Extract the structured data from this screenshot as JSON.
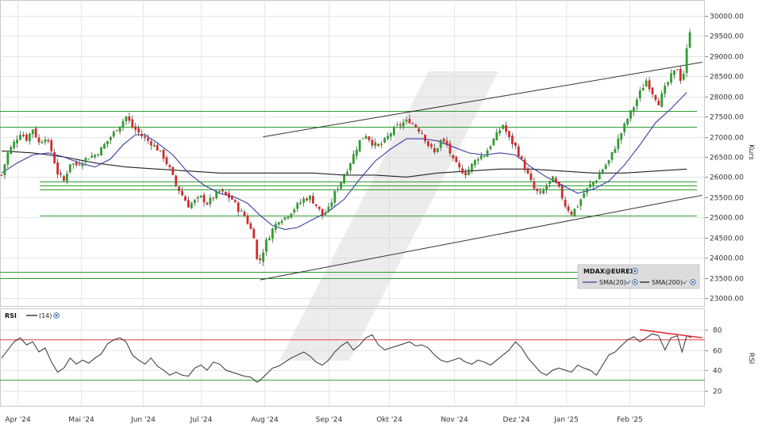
{
  "chart_data": {
    "type": "candlestick",
    "title": "MDAX@EUREX",
    "series": [
      {
        "name": "SMA(20)",
        "color": "#3a3aa8"
      },
      {
        "name": "SMA(200)",
        "color": "#222222"
      }
    ],
    "ylabel": "Kurs",
    "ylim": [
      22800,
      30200
    ],
    "yticks": [
      "30000.00",
      "29500.00",
      "29000.00",
      "28500.00",
      "28000.00",
      "27500.00",
      "27000.00",
      "26500.00",
      "26000.00",
      "25500.00",
      "25000.00",
      "24500.00",
      "24000.00",
      "23500.00",
      "23000.00"
    ],
    "months": [
      "Apr '24",
      "Mai '24",
      "Jun '24",
      "Jul '24",
      "Aug '24",
      "Sep '24",
      "Okt '24",
      "Nov '24",
      "Dez '24",
      "Jan '25",
      "Feb '25"
    ],
    "horizontal_levels": [
      27650,
      27250,
      25900,
      25800,
      25700,
      25050,
      23650,
      23500
    ],
    "close_path": [
      [
        0,
        26050
      ],
      [
        4,
        26600
      ],
      [
        8,
        26850
      ],
      [
        12,
        27100
      ],
      [
        16,
        26950
      ],
      [
        20,
        27200
      ],
      [
        24,
        26850
      ],
      [
        28,
        27000
      ],
      [
        32,
        26650
      ],
      [
        36,
        26100
      ],
      [
        40,
        25900
      ],
      [
        44,
        26350
      ],
      [
        48,
        26300
      ],
      [
        52,
        26400
      ],
      [
        56,
        26500
      ],
      [
        60,
        26550
      ],
      [
        64,
        26700
      ],
      [
        68,
        26900
      ],
      [
        72,
        27100
      ],
      [
        76,
        27300
      ],
      [
        80,
        27500
      ],
      [
        84,
        27250
      ],
      [
        88,
        27100
      ],
      [
        92,
        26950
      ],
      [
        96,
        26850
      ],
      [
        100,
        26700
      ],
      [
        104,
        26500
      ],
      [
        108,
        26200
      ],
      [
        112,
        25800
      ],
      [
        116,
        25550
      ],
      [
        120,
        25300
      ],
      [
        124,
        25400
      ],
      [
        128,
        25500
      ],
      [
        132,
        25350
      ],
      [
        136,
        25500
      ],
      [
        140,
        25650
      ],
      [
        144,
        25550
      ],
      [
        148,
        25450
      ],
      [
        152,
        25200
      ],
      [
        156,
        25050
      ],
      [
        160,
        24700
      ],
      [
        162,
        24550
      ],
      [
        164,
        23950
      ],
      [
        166,
        23950
      ],
      [
        170,
        24400
      ],
      [
        174,
        24700
      ],
      [
        178,
        24950
      ],
      [
        182,
        25000
      ],
      [
        186,
        25150
      ],
      [
        190,
        25300
      ],
      [
        194,
        25450
      ],
      [
        198,
        25500
      ],
      [
        202,
        25300
      ],
      [
        206,
        25050
      ],
      [
        210,
        25200
      ],
      [
        214,
        25600
      ],
      [
        218,
        25900
      ],
      [
        222,
        26200
      ],
      [
        226,
        26550
      ],
      [
        230,
        26900
      ],
      [
        234,
        27050
      ],
      [
        238,
        26850
      ],
      [
        242,
        26750
      ],
      [
        246,
        26900
      ],
      [
        250,
        27100
      ],
      [
        254,
        27250
      ],
      [
        258,
        27350
      ],
      [
        262,
        27400
      ],
      [
        266,
        27250
      ],
      [
        270,
        27100
      ],
      [
        274,
        26800
      ],
      [
        278,
        26600
      ],
      [
        282,
        26900
      ],
      [
        286,
        26800
      ],
      [
        290,
        26400
      ],
      [
        294,
        26200
      ],
      [
        298,
        26100
      ],
      [
        302,
        26300
      ],
      [
        306,
        26500
      ],
      [
        310,
        26550
      ],
      [
        314,
        26800
      ],
      [
        318,
        27050
      ],
      [
        322,
        27300
      ],
      [
        326,
        26950
      ],
      [
        330,
        26750
      ],
      [
        334,
        26400
      ],
      [
        338,
        26050
      ],
      [
        342,
        25700
      ],
      [
        346,
        25550
      ],
      [
        350,
        25800
      ],
      [
        354,
        25950
      ],
      [
        358,
        25700
      ],
      [
        362,
        25300
      ],
      [
        366,
        25100
      ],
      [
        370,
        25300
      ],
      [
        374,
        25600
      ],
      [
        378,
        25800
      ],
      [
        382,
        25950
      ],
      [
        386,
        26200
      ],
      [
        390,
        26400
      ],
      [
        394,
        26750
      ],
      [
        398,
        27100
      ],
      [
        402,
        27450
      ],
      [
        406,
        27750
      ],
      [
        410,
        28100
      ],
      [
        414,
        28400
      ],
      [
        418,
        28100
      ],
      [
        422,
        27850
      ],
      [
        426,
        28200
      ],
      [
        430,
        28500
      ],
      [
        434,
        28700
      ],
      [
        437,
        28300
      ],
      [
        440,
        29150
      ],
      [
        443,
        29900
      ]
    ],
    "sma20_path": [
      [
        0,
        26100
      ],
      [
        10,
        26350
      ],
      [
        20,
        26550
      ],
      [
        30,
        26600
      ],
      [
        40,
        26500
      ],
      [
        50,
        26350
      ],
      [
        60,
        26250
      ],
      [
        70,
        26450
      ],
      [
        78,
        26800
      ],
      [
        86,
        27050
      ],
      [
        92,
        27050
      ],
      [
        100,
        26850
      ],
      [
        110,
        26550
      ],
      [
        120,
        26100
      ],
      [
        130,
        25800
      ],
      [
        140,
        25600
      ],
      [
        150,
        25500
      ],
      [
        158,
        25350
      ],
      [
        166,
        25050
      ],
      [
        174,
        24800
      ],
      [
        182,
        24700
      ],
      [
        190,
        24750
      ],
      [
        200,
        24950
      ],
      [
        210,
        25150
      ],
      [
        220,
        25450
      ],
      [
        230,
        25950
      ],
      [
        240,
        26400
      ],
      [
        250,
        26700
      ],
      [
        260,
        26950
      ],
      [
        270,
        26950
      ],
      [
        280,
        26900
      ],
      [
        290,
        26750
      ],
      [
        300,
        26600
      ],
      [
        310,
        26550
      ],
      [
        320,
        26600
      ],
      [
        330,
        26550
      ],
      [
        340,
        26250
      ],
      [
        350,
        26000
      ],
      [
        360,
        25800
      ],
      [
        370,
        25600
      ],
      [
        380,
        25700
      ],
      [
        390,
        25900
      ],
      [
        400,
        26300
      ],
      [
        410,
        26800
      ],
      [
        420,
        27350
      ],
      [
        430,
        27700
      ],
      [
        440,
        28100
      ]
    ],
    "sma200_path": [
      [
        0,
        26650
      ],
      [
        20,
        26600
      ],
      [
        40,
        26500
      ],
      [
        60,
        26350
      ],
      [
        80,
        26250
      ],
      [
        100,
        26200
      ],
      [
        120,
        26150
      ],
      [
        140,
        26100
      ],
      [
        160,
        26100
      ],
      [
        180,
        26100
      ],
      [
        200,
        26100
      ],
      [
        220,
        26050
      ],
      [
        240,
        26050
      ],
      [
        260,
        26000
      ],
      [
        280,
        26100
      ],
      [
        300,
        26150
      ],
      [
        320,
        26200
      ],
      [
        340,
        26200
      ],
      [
        360,
        26150
      ],
      [
        380,
        26100
      ],
      [
        400,
        26100
      ],
      [
        420,
        26150
      ],
      [
        440,
        26200
      ]
    ],
    "trend_channel": {
      "upper": [
        [
          168,
          27000
        ],
        [
          450,
          28850
        ]
      ],
      "lower": [
        [
          166,
          23450
        ],
        [
          450,
          25550
        ]
      ]
    },
    "rsi": {
      "label": "RSI",
      "period_label": "(14)",
      "ylabel": "RSI",
      "ylim": [
        10,
        90
      ],
      "yticks": [
        "80",
        "60",
        "40",
        "20"
      ],
      "overbought": 70,
      "oversold": 30,
      "divergence": [
        [
          410,
          80
        ],
        [
          450,
          72
        ]
      ],
      "path": [
        [
          0,
          52
        ],
        [
          4,
          60
        ],
        [
          8,
          68
        ],
        [
          12,
          72
        ],
        [
          16,
          65
        ],
        [
          20,
          68
        ],
        [
          24,
          58
        ],
        [
          28,
          62
        ],
        [
          32,
          48
        ],
        [
          36,
          38
        ],
        [
          40,
          42
        ],
        [
          44,
          52
        ],
        [
          48,
          46
        ],
        [
          52,
          50
        ],
        [
          56,
          47
        ],
        [
          60,
          52
        ],
        [
          64,
          56
        ],
        [
          68,
          66
        ],
        [
          72,
          70
        ],
        [
          76,
          72
        ],
        [
          80,
          68
        ],
        [
          84,
          55
        ],
        [
          88,
          50
        ],
        [
          92,
          46
        ],
        [
          96,
          52
        ],
        [
          100,
          44
        ],
        [
          104,
          40
        ],
        [
          108,
          35
        ],
        [
          112,
          38
        ],
        [
          116,
          35
        ],
        [
          120,
          34
        ],
        [
          124,
          42
        ],
        [
          128,
          45
        ],
        [
          132,
          40
        ],
        [
          136,
          48
        ],
        [
          140,
          46
        ],
        [
          144,
          40
        ],
        [
          148,
          38
        ],
        [
          152,
          36
        ],
        [
          156,
          34
        ],
        [
          160,
          33
        ],
        [
          164,
          28
        ],
        [
          166,
          30
        ],
        [
          170,
          36
        ],
        [
          174,
          42
        ],
        [
          178,
          44
        ],
        [
          182,
          48
        ],
        [
          186,
          52
        ],
        [
          190,
          55
        ],
        [
          194,
          58
        ],
        [
          198,
          54
        ],
        [
          202,
          48
        ],
        [
          206,
          45
        ],
        [
          210,
          50
        ],
        [
          214,
          58
        ],
        [
          218,
          64
        ],
        [
          222,
          68
        ],
        [
          226,
          60
        ],
        [
          230,
          65
        ],
        [
          234,
          72
        ],
        [
          238,
          75
        ],
        [
          242,
          65
        ],
        [
          246,
          60
        ],
        [
          250,
          62
        ],
        [
          254,
          64
        ],
        [
          258,
          66
        ],
        [
          262,
          68
        ],
        [
          266,
          64
        ],
        [
          270,
          65
        ],
        [
          274,
          62
        ],
        [
          278,
          55
        ],
        [
          282,
          50
        ],
        [
          286,
          48
        ],
        [
          290,
          50
        ],
        [
          294,
          52
        ],
        [
          298,
          48
        ],
        [
          302,
          46
        ],
        [
          306,
          50
        ],
        [
          310,
          48
        ],
        [
          314,
          45
        ],
        [
          318,
          50
        ],
        [
          322,
          55
        ],
        [
          326,
          60
        ],
        [
          330,
          68
        ],
        [
          334,
          62
        ],
        [
          338,
          52
        ],
        [
          342,
          45
        ],
        [
          346,
          38
        ],
        [
          350,
          35
        ],
        [
          354,
          40
        ],
        [
          358,
          42
        ],
        [
          362,
          40
        ],
        [
          366,
          38
        ],
        [
          370,
          45
        ],
        [
          374,
          42
        ],
        [
          378,
          40
        ],
        [
          382,
          35
        ],
        [
          386,
          45
        ],
        [
          390,
          55
        ],
        [
          394,
          58
        ],
        [
          398,
          64
        ],
        [
          402,
          70
        ],
        [
          406,
          73
        ],
        [
          410,
          68
        ],
        [
          414,
          72
        ],
        [
          418,
          76
        ],
        [
          422,
          74
        ],
        [
          426,
          60
        ],
        [
          430,
          72
        ],
        [
          434,
          74
        ],
        [
          437,
          58
        ],
        [
          440,
          74
        ],
        [
          443,
          72
        ]
      ]
    }
  }
}
